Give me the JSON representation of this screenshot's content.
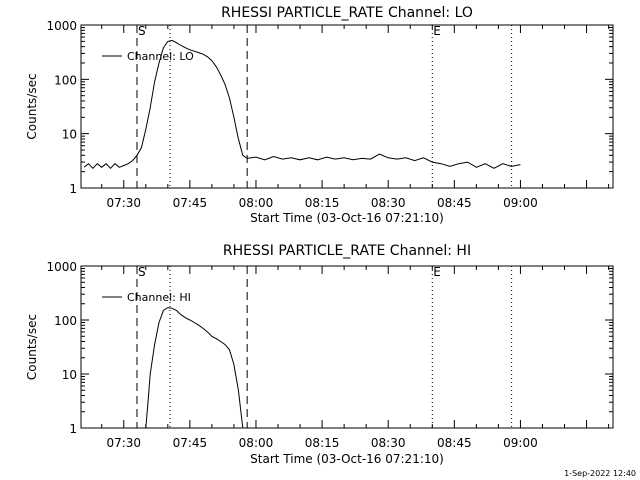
{
  "footer": {
    "timestamp": "1-Sep-2022 12:40"
  },
  "chart_data": [
    {
      "type": "line",
      "title": "RHESSI PARTICLE_RATE Channel: LO",
      "xlabel": "Start Time (03-Oct-16 07:21:10)",
      "ylabel": "Counts/sec",
      "yscale": "log",
      "ylim": [
        1,
        1000
      ],
      "xlim_minutes": [
        -0.7,
        120
      ],
      "x_tick_labels": [
        "07:30",
        "07:45",
        "08:00",
        "08:15",
        "08:30",
        "08:45",
        "09:00"
      ],
      "y_tick_labels": [
        "1",
        "10",
        "100",
        "1000"
      ],
      "legend": {
        "label": "Channel: LO",
        "position": "top-left"
      },
      "markers": [
        {
          "label": "S",
          "time": "07:33",
          "style": "dashed"
        },
        {
          "label": "",
          "time": "07:40.5",
          "style": "dotted"
        },
        {
          "label": "",
          "time": "07:58",
          "style": "dashed"
        },
        {
          "label": "E",
          "time": "08:40",
          "style": "dotted"
        },
        {
          "label": "",
          "time": "08:58",
          "style": "dotted"
        }
      ],
      "series": [
        {
          "name": "Channel: LO",
          "points": [
            [
              "07:21",
              2.4
            ],
            [
              "07:22",
              2.8
            ],
            [
              "07:23",
              2.3
            ],
            [
              "07:24",
              2.8
            ],
            [
              "07:25",
              2.4
            ],
            [
              "07:26",
              2.8
            ],
            [
              "07:27",
              2.3
            ],
            [
              "07:28",
              2.8
            ],
            [
              "07:29",
              2.4
            ],
            [
              "07:30",
              2.6
            ],
            [
              "07:31",
              2.8
            ],
            [
              "07:32",
              3.2
            ],
            [
              "07:33",
              4.0
            ],
            [
              "07:34",
              5.5
            ],
            [
              "07:35",
              12
            ],
            [
              "07:36",
              30
            ],
            [
              "07:37",
              90
            ],
            [
              "07:38",
              200
            ],
            [
              "07:39",
              380
            ],
            [
              "07:40",
              500
            ],
            [
              "07:41",
              520
            ],
            [
              "07:42",
              470
            ],
            [
              "07:43",
              420
            ],
            [
              "07:44",
              380
            ],
            [
              "07:45",
              350
            ],
            [
              "07:46",
              330
            ],
            [
              "07:47",
              310
            ],
            [
              "07:48",
              290
            ],
            [
              "07:49",
              260
            ],
            [
              "07:50",
              220
            ],
            [
              "07:51",
              170
            ],
            [
              "07:52",
              120
            ],
            [
              "07:53",
              80
            ],
            [
              "07:54",
              45
            ],
            [
              "07:55",
              20
            ],
            [
              "07:56",
              8
            ],
            [
              "07:57",
              4.0
            ],
            [
              "07:58",
              3.5
            ],
            [
              "08:00",
              3.7
            ],
            [
              "08:02",
              3.3
            ],
            [
              "08:04",
              3.8
            ],
            [
              "08:06",
              3.4
            ],
            [
              "08:08",
              3.6
            ],
            [
              "08:10",
              3.3
            ],
            [
              "08:12",
              3.6
            ],
            [
              "08:14",
              3.3
            ],
            [
              "08:16",
              3.7
            ],
            [
              "08:18",
              3.4
            ],
            [
              "08:20",
              3.6
            ],
            [
              "08:22",
              3.3
            ],
            [
              "08:24",
              3.5
            ],
            [
              "08:26",
              3.4
            ],
            [
              "08:28",
              4.2
            ],
            [
              "08:30",
              3.6
            ],
            [
              "08:32",
              3.4
            ],
            [
              "08:34",
              3.6
            ],
            [
              "08:36",
              3.2
            ],
            [
              "08:38",
              3.6
            ],
            [
              "08:40",
              3.0
            ],
            [
              "08:42",
              2.8
            ],
            [
              "08:44",
              2.5
            ],
            [
              "08:46",
              2.8
            ],
            [
              "08:48",
              3.0
            ],
            [
              "08:50",
              2.4
            ],
            [
              "08:52",
              2.8
            ],
            [
              "08:54",
              2.3
            ],
            [
              "08:56",
              2.8
            ],
            [
              "08:58",
              2.5
            ],
            [
              "09:00",
              2.7
            ]
          ]
        }
      ]
    },
    {
      "type": "line",
      "title": "RHESSI PARTICLE_RATE Channel: HI",
      "xlabel": "Start Time (03-Oct-16 07:21:10)",
      "ylabel": "Counts/sec",
      "yscale": "log",
      "ylim": [
        1,
        1000
      ],
      "xlim_minutes": [
        -0.7,
        120
      ],
      "x_tick_labels": [
        "07:30",
        "07:45",
        "08:00",
        "08:15",
        "08:30",
        "08:45",
        "09:00"
      ],
      "y_tick_labels": [
        "1",
        "10",
        "100",
        "1000"
      ],
      "legend": {
        "label": "Channel: HI",
        "position": "top-left"
      },
      "markers": [
        {
          "label": "S",
          "time": "07:33",
          "style": "dashed"
        },
        {
          "label": "",
          "time": "07:40.5",
          "style": "dotted"
        },
        {
          "label": "",
          "time": "07:58",
          "style": "dashed"
        },
        {
          "label": "E",
          "time": "08:40",
          "style": "dotted"
        },
        {
          "label": "",
          "time": "08:58",
          "style": "dotted"
        }
      ],
      "series": [
        {
          "name": "Channel: HI",
          "points": [
            [
              "07:35",
              1.0
            ],
            [
              "07:35.5",
              3
            ],
            [
              "07:36",
              10
            ],
            [
              "07:37",
              35
            ],
            [
              "07:38",
              90
            ],
            [
              "07:39",
              150
            ],
            [
              "07:40",
              170
            ],
            [
              "07:41",
              165
            ],
            [
              "07:42",
              150
            ],
            [
              "07:43",
              125
            ],
            [
              "07:44",
              110
            ],
            [
              "07:45",
              100
            ],
            [
              "07:46",
              90
            ],
            [
              "07:47",
              80
            ],
            [
              "07:48",
              70
            ],
            [
              "07:49",
              60
            ],
            [
              "07:50",
              50
            ],
            [
              "07:51",
              45
            ],
            [
              "07:52",
              40
            ],
            [
              "07:53",
              35
            ],
            [
              "07:54",
              28
            ],
            [
              "07:55",
              15
            ],
            [
              "07:56",
              5
            ],
            [
              "07:57",
              1.0
            ]
          ]
        }
      ]
    }
  ]
}
